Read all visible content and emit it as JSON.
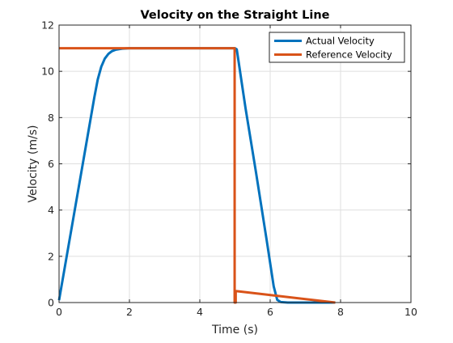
{
  "chart_data": {
    "type": "line",
    "title": "Velocity on the Straight Line",
    "xlabel": "Time (s)",
    "ylabel": "Velocity (m/s)",
    "xlim": [
      0,
      10
    ],
    "ylim": [
      0,
      12
    ],
    "xticks": [
      0,
      2,
      4,
      6,
      8,
      10
    ],
    "yticks": [
      0,
      2,
      4,
      6,
      8,
      10,
      12
    ],
    "xtick_labels": [
      "0",
      "2",
      "4",
      "6",
      "8",
      "10"
    ],
    "ytick_labels": [
      "0",
      "2",
      "4",
      "6",
      "8",
      "10",
      "12"
    ],
    "grid": true,
    "legend_position": "top-right",
    "series": [
      {
        "name": "Actual Velocity",
        "color": "#0072bd",
        "x": [
          0,
          0.2,
          0.4,
          0.6,
          0.8,
          1.0,
          1.1,
          1.2,
          1.3,
          1.4,
          1.5,
          1.6,
          1.7,
          1.8,
          2.0,
          2.5,
          3.0,
          3.5,
          4.0,
          4.5,
          5.0,
          5.05,
          5.3,
          5.6,
          5.9,
          6.1,
          6.2,
          6.3,
          6.5,
          7.0,
          7.5,
          7.85
        ],
        "y": [
          0.1,
          1.85,
          3.6,
          5.35,
          7.1,
          8.85,
          9.65,
          10.2,
          10.55,
          10.75,
          10.87,
          10.93,
          10.96,
          10.98,
          11.0,
          11.0,
          11.0,
          11.0,
          11.0,
          11.0,
          11.0,
          10.95,
          8.4,
          5.6,
          2.7,
          0.7,
          0.12,
          0.02,
          0,
          0,
          0,
          0
        ]
      },
      {
        "name": "Reference Velocity",
        "color": "#d95319",
        "x": [
          0,
          4.99,
          4.99,
          5.02,
          5.02,
          7.85
        ],
        "y": [
          11,
          11,
          0,
          0,
          0.5,
          0
        ]
      }
    ]
  }
}
